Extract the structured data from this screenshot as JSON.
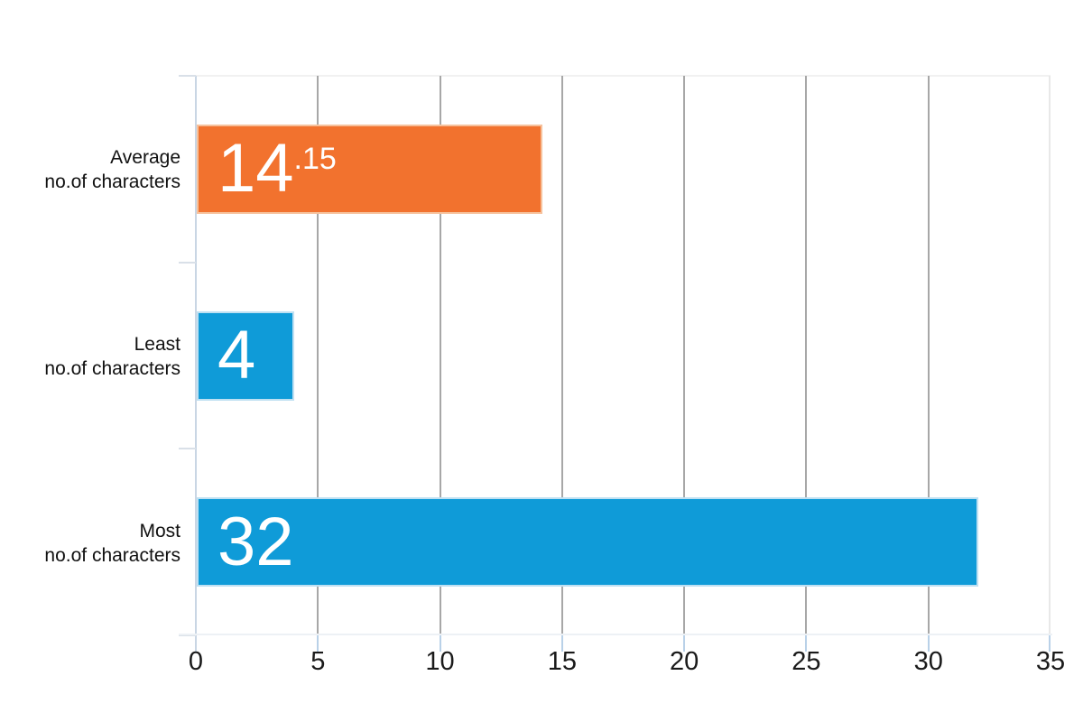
{
  "chart_data": {
    "type": "bar",
    "orientation": "horizontal",
    "title": "",
    "xlabel": "",
    "ylabel": "",
    "xlim": [
      0,
      35
    ],
    "x_ticks": [
      0,
      5,
      10,
      15,
      20,
      25,
      30,
      35
    ],
    "grid": "vertical gridlines at every x tick",
    "legend": "none",
    "categories": [
      {
        "line1": "Average",
        "line2": "no.of characters"
      },
      {
        "line1": "Least",
        "line2": "no.of characters"
      },
      {
        "line1": "Most",
        "line2": "no.of characters"
      }
    ],
    "values": [
      14.15,
      4,
      32
    ],
    "value_labels": [
      {
        "main": "14",
        "sup": ".15"
      },
      {
        "main": "4",
        "sup": ""
      },
      {
        "main": "32",
        "sup": ""
      }
    ],
    "bar_colors": [
      "#F2722E",
      "#0F9BD8",
      "#0F9BD8"
    ],
    "bar_border_colors": [
      "#F6C19C",
      "#BFE0F2",
      "#BFE0F2"
    ]
  },
  "style": {
    "background": "#FFFFFF",
    "gridline": "#A7A7A7",
    "plot_top_border": "#F1F1F1",
    "plot_right_border": "#E8E8E8",
    "y_axis_line": "#C9D6E4",
    "y_tick": "#D9E0E8",
    "x_tick": "#B9D1E8",
    "x_axis_line": "#EDF1F5",
    "category_label_color": "#111111",
    "tick_label_color": "#1A1A1A",
    "value_text_color": "#FFFFFF"
  }
}
